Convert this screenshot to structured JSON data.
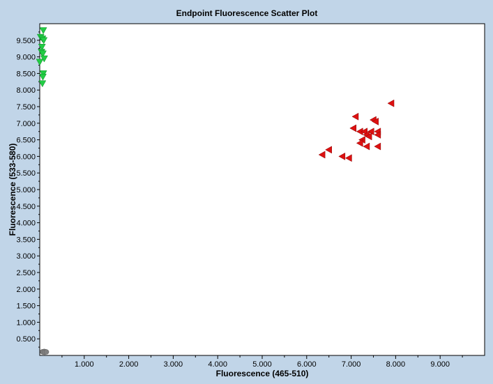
{
  "chart_data": {
    "type": "scatter",
    "title": "Endpoint Fluorescence Scatter Plot",
    "xlabel": "Fluorescence (465-510)",
    "ylabel": "Fluorescence (533-580)",
    "xlim": [
      0,
      10000
    ],
    "ylim": [
      0,
      10000
    ],
    "x_ticks": [
      1000,
      2000,
      3000,
      4000,
      5000,
      6000,
      7000,
      8000,
      9000
    ],
    "x_tick_labels": [
      "1.000",
      "2.000",
      "3.000",
      "4.000",
      "5.000",
      "6.000",
      "7.000",
      "8.000",
      "9.000"
    ],
    "y_ticks": [
      500,
      1000,
      1500,
      2000,
      2500,
      3000,
      3500,
      4000,
      4500,
      5000,
      5500,
      6000,
      6500,
      7000,
      7500,
      8000,
      8500,
      9000,
      9500
    ],
    "y_tick_labels": [
      "0.500",
      "1.000",
      "1.500",
      "2.000",
      "2.500",
      "3.000",
      "3.500",
      "4.000",
      "4.500",
      "5.000",
      "5.500",
      "6.000",
      "6.500",
      "7.000",
      "7.500",
      "8.000",
      "8.500",
      "9.000",
      "9.500"
    ],
    "grid": false,
    "series": [
      {
        "marker": "triangle-down",
        "color": "#22cc44",
        "points": [
          [
            80,
            9800
          ],
          [
            20,
            9600
          ],
          [
            60,
            9550
          ],
          [
            90,
            9500
          ],
          [
            50,
            9300
          ],
          [
            40,
            9150
          ],
          [
            70,
            9100
          ],
          [
            100,
            8950
          ],
          [
            0,
            8850
          ],
          [
            80,
            8500
          ],
          [
            70,
            8400
          ],
          [
            60,
            8200
          ]
        ]
      },
      {
        "marker": "triangle-left",
        "color": "#dd1111",
        "points": [
          [
            7900,
            7600
          ],
          [
            7100,
            7200
          ],
          [
            7500,
            7100
          ],
          [
            7550,
            7050
          ],
          [
            7050,
            6850
          ],
          [
            7200,
            6750
          ],
          [
            7300,
            6750
          ],
          [
            7450,
            6750
          ],
          [
            7600,
            6750
          ],
          [
            7350,
            6650
          ],
          [
            7600,
            6650
          ],
          [
            7400,
            6600
          ],
          [
            7250,
            6500
          ],
          [
            7200,
            6400
          ],
          [
            7350,
            6300
          ],
          [
            7600,
            6300
          ],
          [
            6500,
            6200
          ],
          [
            6350,
            6050
          ],
          [
            6800,
            6000
          ],
          [
            6950,
            5950
          ]
        ]
      },
      {
        "marker": "circle",
        "color": "#808080",
        "points": [
          [
            60,
            110
          ],
          [
            100,
            120
          ],
          [
            130,
            110
          ],
          [
            80,
            100
          ],
          [
            110,
            95
          ],
          [
            150,
            105
          ]
        ]
      }
    ]
  }
}
